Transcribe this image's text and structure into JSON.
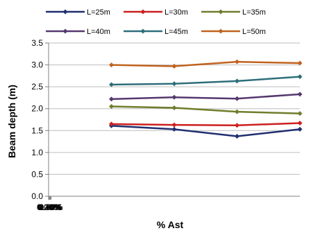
{
  "chart_data": {
    "type": "line",
    "title": "",
    "xlabel": "% Ast",
    "ylabel": "Beam depth (m)",
    "x_ticks": [
      "0.00%",
      "0.20%",
      "0.40%",
      "0.60%",
      "0.80%"
    ],
    "y_ticks": [
      "0.0",
      "0.5",
      "1.0",
      "1.5",
      "2.0",
      "2.5",
      "3.0",
      "3.5"
    ],
    "xlim": [
      0,
      0.8
    ],
    "ylim": [
      0,
      3.5
    ],
    "grid": "horizontal",
    "legend_position": "top",
    "x": [
      0.2,
      0.4,
      0.6,
      0.8
    ],
    "series": [
      {
        "name": "L=25m",
        "color": "#1f2f6e",
        "values": [
          1.61,
          1.53,
          1.37,
          1.53
        ]
      },
      {
        "name": "L=30m",
        "color": "#cc1f1f",
        "values": [
          1.65,
          1.63,
          1.62,
          1.67
        ]
      },
      {
        "name": "L=35m",
        "color": "#6e7d2c",
        "values": [
          2.05,
          2.02,
          1.93,
          1.89
        ]
      },
      {
        "name": "L=40m",
        "color": "#55386e",
        "values": [
          2.22,
          2.26,
          2.23,
          2.33
        ]
      },
      {
        "name": "L=45m",
        "color": "#2d6e7a",
        "values": [
          2.55,
          2.57,
          2.63,
          2.73
        ]
      },
      {
        "name": "L=50m",
        "color": "#c0621e",
        "values": [
          3.0,
          2.97,
          3.07,
          3.04
        ]
      }
    ]
  }
}
